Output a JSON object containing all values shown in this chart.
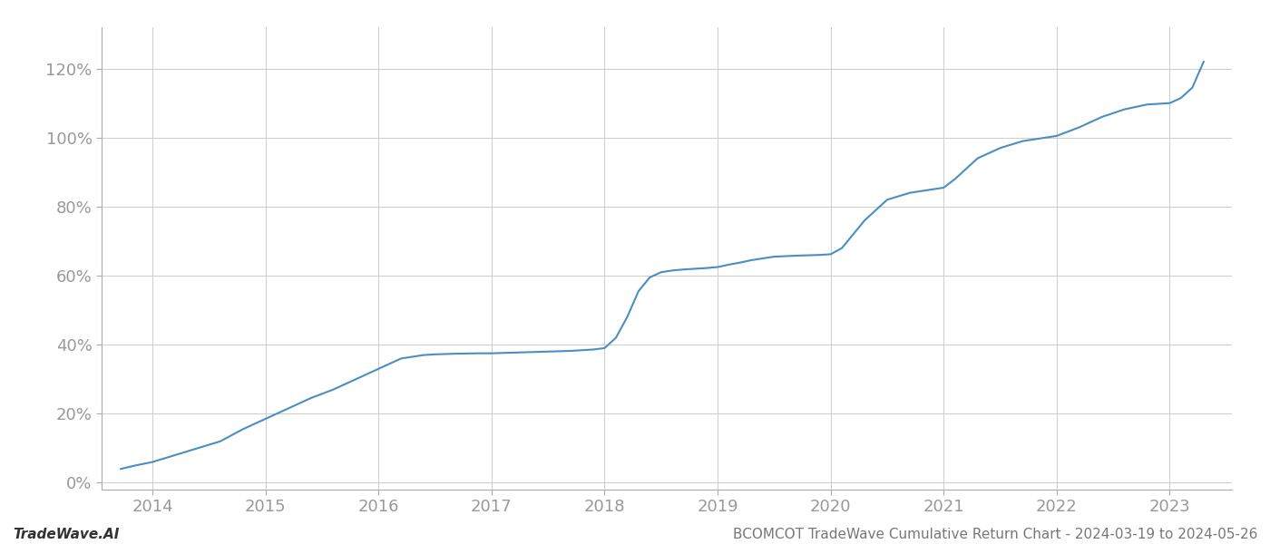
{
  "title": "BCOMCOT TradeWave Cumulative Return Chart - 2024-03-19 to 2024-05-26",
  "watermark": "TradeWave.AI",
  "line_color": "#4a8fc0",
  "background_color": "#ffffff",
  "grid_color": "#cccccc",
  "x_years": [
    2014,
    2015,
    2016,
    2017,
    2018,
    2019,
    2020,
    2021,
    2022,
    2023
  ],
  "data_x": [
    2013.72,
    2013.85,
    2014.0,
    2014.2,
    2014.4,
    2014.6,
    2014.8,
    2015.0,
    2015.1,
    2015.2,
    2015.4,
    2015.6,
    2015.8,
    2016.0,
    2016.1,
    2016.2,
    2016.4,
    2016.5,
    2016.7,
    2016.9,
    2017.0,
    2017.1,
    2017.2,
    2017.3,
    2017.4,
    2017.5,
    2017.6,
    2017.7,
    2017.8,
    2017.9,
    2018.0,
    2018.1,
    2018.2,
    2018.3,
    2018.4,
    2018.5,
    2018.6,
    2018.7,
    2018.8,
    2018.9,
    2019.0,
    2019.1,
    2019.2,
    2019.3,
    2019.4,
    2019.5,
    2019.7,
    2019.9,
    2020.0,
    2020.1,
    2020.2,
    2020.3,
    2020.5,
    2020.7,
    2020.9,
    2021.0,
    2021.1,
    2021.2,
    2021.3,
    2021.5,
    2021.7,
    2021.9,
    2022.0,
    2022.2,
    2022.4,
    2022.6,
    2022.8,
    2023.0,
    2023.1,
    2023.2,
    2023.3
  ],
  "data_y": [
    0.04,
    0.05,
    0.06,
    0.08,
    0.1,
    0.12,
    0.155,
    0.185,
    0.2,
    0.215,
    0.245,
    0.27,
    0.3,
    0.33,
    0.345,
    0.36,
    0.37,
    0.372,
    0.374,
    0.375,
    0.375,
    0.376,
    0.377,
    0.378,
    0.379,
    0.38,
    0.381,
    0.382,
    0.384,
    0.386,
    0.39,
    0.42,
    0.48,
    0.555,
    0.595,
    0.61,
    0.615,
    0.618,
    0.62,
    0.622,
    0.625,
    0.632,
    0.638,
    0.645,
    0.65,
    0.655,
    0.658,
    0.66,
    0.662,
    0.68,
    0.72,
    0.76,
    0.82,
    0.84,
    0.85,
    0.855,
    0.88,
    0.91,
    0.94,
    0.97,
    0.99,
    1.0,
    1.005,
    1.03,
    1.06,
    1.082,
    1.096,
    1.1,
    1.115,
    1.145,
    1.22
  ],
  "ylim": [
    -0.02,
    1.32
  ],
  "xlim": [
    2013.55,
    2023.55
  ],
  "yticks": [
    0.0,
    0.2,
    0.4,
    0.6,
    0.8,
    1.0,
    1.2
  ],
  "ytick_labels": [
    "0%",
    "20%",
    "40%",
    "60%",
    "80%",
    "100%",
    "120%"
  ],
  "line_width": 1.5,
  "title_fontsize": 11,
  "watermark_fontsize": 11,
  "tick_fontsize": 13,
  "axis_color": "#999999",
  "bottom_text_color": "#777777"
}
